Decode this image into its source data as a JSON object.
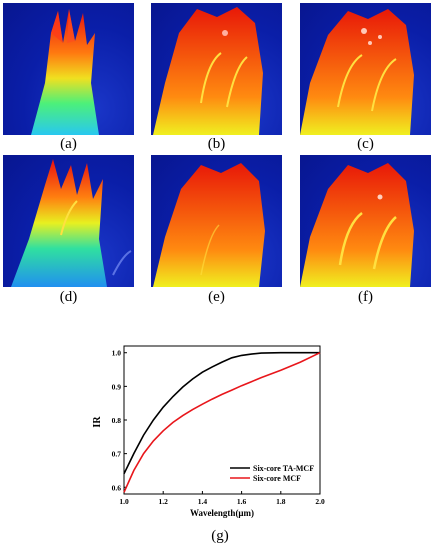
{
  "panels": [
    {
      "label": "(a)"
    },
    {
      "label": "(b)"
    },
    {
      "label": "(c)"
    },
    {
      "label": "(d)"
    },
    {
      "label": "(e)"
    },
    {
      "label": "(f)"
    }
  ],
  "figure_g_label": "(g)",
  "chart_data": {
    "type": "line",
    "title": "",
    "xlabel": "Wavelength(μm)",
    "ylabel": "IR",
    "xlim": [
      1.0,
      2.0
    ],
    "ylim": [
      0.58,
      1.02
    ],
    "x_ticks": [
      "1.0",
      "1.2",
      "1.4",
      "1.6",
      "1.8",
      "2.0"
    ],
    "y_ticks": [
      "0.6",
      "0.7",
      "0.8",
      "0.9",
      "1.0"
    ],
    "grid": false,
    "legend_position": "bottom-right",
    "series": [
      {
        "name": "Six-core TA-MCF",
        "color": "#000000",
        "x": [
          1.0,
          1.05,
          1.1,
          1.15,
          1.2,
          1.25,
          1.3,
          1.35,
          1.4,
          1.45,
          1.5,
          1.55,
          1.6,
          1.65,
          1.7,
          1.8,
          1.9,
          2.0
        ],
        "y": [
          0.64,
          0.7,
          0.755,
          0.8,
          0.838,
          0.87,
          0.898,
          0.922,
          0.942,
          0.958,
          0.972,
          0.985,
          0.992,
          0.996,
          0.999,
          1.0,
          1.0,
          1.0
        ]
      },
      {
        "name": "Six-core MCF",
        "color": "#e8161b",
        "x": [
          1.0,
          1.05,
          1.1,
          1.15,
          1.2,
          1.25,
          1.3,
          1.35,
          1.4,
          1.45,
          1.5,
          1.55,
          1.6,
          1.65,
          1.7,
          1.8,
          1.9,
          2.0
        ],
        "y": [
          0.585,
          0.65,
          0.7,
          0.738,
          0.768,
          0.793,
          0.813,
          0.831,
          0.847,
          0.862,
          0.876,
          0.889,
          0.902,
          0.914,
          0.926,
          0.948,
          0.972,
          1.0
        ]
      }
    ]
  }
}
